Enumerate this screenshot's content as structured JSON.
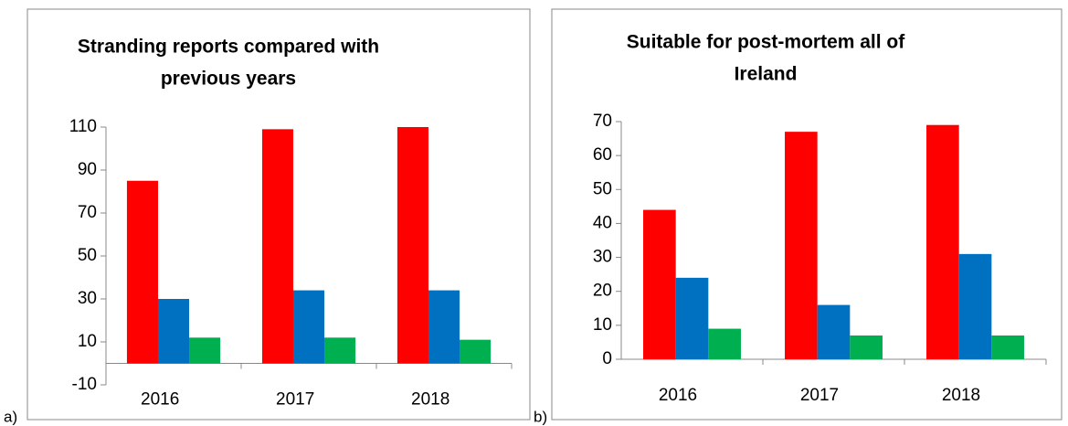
{
  "chart_data": [
    {
      "type": "bar",
      "panel_label": "a)",
      "title": [
        "Stranding reports compared with",
        "previous years"
      ],
      "categories": [
        "2016",
        "2017",
        "2018"
      ],
      "series": [
        {
          "color": "#ff0000",
          "values": [
            85,
            109,
            110
          ]
        },
        {
          "color": "#0070c0",
          "values": [
            30,
            34,
            34
          ]
        },
        {
          "color": "#00b050",
          "values": [
            12,
            12,
            11
          ]
        }
      ],
      "ylim": [
        -10,
        110
      ],
      "yticks": [
        -10,
        10,
        30,
        50,
        70,
        90,
        110
      ],
      "baseline": 0
    },
    {
      "type": "bar",
      "panel_label": "b)",
      "title": [
        "Suitable for post-mortem all of",
        "Ireland"
      ],
      "categories": [
        "2016",
        "2017",
        "2018"
      ],
      "series": [
        {
          "color": "#ff0000",
          "values": [
            44,
            67,
            69
          ]
        },
        {
          "color": "#0070c0",
          "values": [
            24,
            16,
            31
          ]
        },
        {
          "color": "#00b050",
          "values": [
            9,
            7,
            7
          ]
        }
      ],
      "ylim": [
        0,
        70
      ],
      "yticks": [
        0,
        10,
        20,
        30,
        40,
        50,
        60,
        70
      ],
      "baseline": 0
    }
  ]
}
